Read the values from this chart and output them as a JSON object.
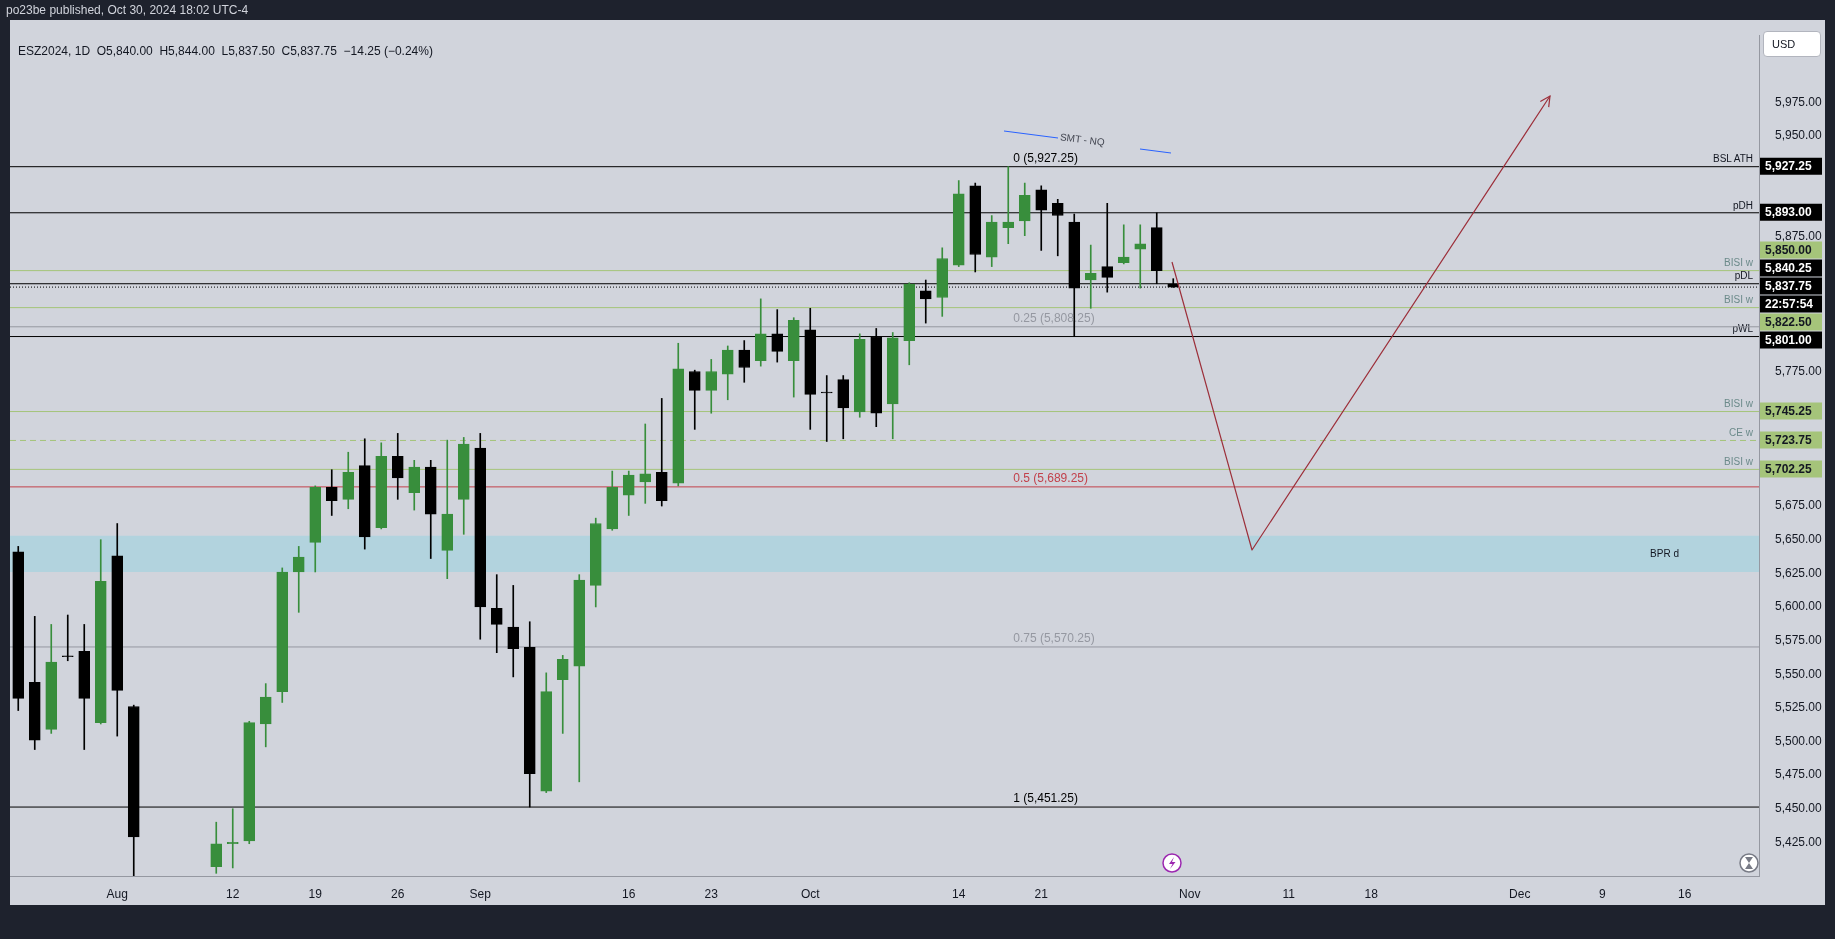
{
  "chart_data": {
    "type": "candlestick",
    "title": "ESZ2024, 1D  O5,840.00  H5,844.00  L5,837.50  C5,837.75  −14.25 (−0.24%)",
    "subtitle": "po23be published, Oct 30, 2024 18:02 UTC-4",
    "categories": [
      null,
      null,
      null,
      null,
      null,
      null,
      "Aug",
      null,
      null,
      null,
      null,
      null,
      null,
      "12",
      null,
      null,
      null,
      null,
      "19",
      null,
      null,
      null,
      null,
      "26",
      null,
      null,
      null,
      null,
      "Sep",
      null,
      null,
      null,
      null,
      null,
      null,
      null,
      null,
      "16",
      null,
      null,
      null,
      null,
      "23",
      null,
      null,
      null,
      null,
      null,
      "Oct",
      null,
      null,
      null,
      null,
      null,
      null,
      null,
      null,
      "14",
      null,
      null,
      null,
      null,
      "21",
      null,
      null,
      null,
      null,
      null,
      null,
      null,
      null,
      "Nov",
      null,
      null,
      null,
      null,
      null,
      "11",
      null,
      null,
      null,
      null,
      "18",
      null,
      null,
      null,
      null,
      null,
      null,
      null,
      null,
      "Dec",
      null,
      null,
      null,
      null,
      "9",
      null,
      null,
      null,
      null,
      "16",
      null,
      null,
      null,
      null
    ],
    "ohlc": [
      [
        5641,
        5645,
        5523,
        5532
      ],
      [
        5544,
        5593,
        5494,
        5501
      ],
      [
        5509,
        5587,
        5506,
        5559
      ],
      [
        5563,
        5594,
        5560,
        5563
      ],
      [
        5567,
        5587,
        5494,
        5532
      ],
      [
        5514,
        5650,
        5513,
        5619
      ],
      [
        5638,
        5662,
        5504,
        5538
      ],
      [
        5526,
        5527,
        5400,
        5429
      ],
      null,
      null,
      null,
      null,
      [
        5407,
        5440,
        5402,
        5424
      ],
      [
        5424,
        5450,
        5406,
        5425
      ],
      [
        5426,
        5515,
        5424,
        5514
      ],
      [
        5513,
        5543,
        5496,
        5533
      ],
      [
        5537,
        5629,
        5529,
        5626
      ],
      [
        5626,
        5645,
        5596,
        5637
      ],
      [
        5648,
        5690,
        5626,
        5689
      ],
      [
        5689,
        5702,
        5668,
        5679
      ],
      [
        5680,
        5715,
        5673,
        5700
      ],
      [
        5705,
        5725,
        5643,
        5652
      ],
      [
        5659,
        5722,
        5658,
        5712
      ],
      [
        5712,
        5729,
        5680,
        5696
      ],
      [
        5685,
        5709,
        5672,
        5704
      ],
      [
        5704,
        5709,
        5636,
        5669
      ],
      [
        5642,
        5724,
        5621,
        5669
      ],
      [
        5680,
        5726,
        5654,
        5721
      ],
      [
        5718,
        5729,
        5576,
        5600
      ],
      [
        5599,
        5624,
        5566,
        5587
      ],
      [
        5585,
        5616,
        5548,
        5569
      ],
      [
        5570,
        5589,
        5451.25,
        5476
      ],
      [
        5463,
        5551,
        5462,
        5537
      ],
      [
        5546,
        5564,
        5506,
        5561
      ],
      [
        5556,
        5624,
        5470,
        5620
      ],
      [
        5616,
        5666,
        5600,
        5662
      ],
      [
        5658,
        5701,
        5657,
        5689
      ],
      [
        5683,
        5701,
        5668,
        5698
      ],
      [
        5693,
        5736,
        5677,
        5699
      ],
      [
        5700,
        5755,
        5675,
        5679
      ],
      [
        5692,
        5796,
        5690,
        5777
      ],
      [
        5775,
        5776,
        5732,
        5761
      ],
      [
        5761,
        5784,
        5744,
        5775
      ],
      [
        5773,
        5794,
        5754,
        5791
      ],
      [
        5791,
        5798,
        5767,
        5778
      ],
      [
        5783,
        5829,
        5779,
        5803
      ],
      [
        5803,
        5821,
        5782,
        5790
      ],
      [
        5783,
        5815,
        5756,
        5813
      ],
      [
        5806,
        5822,
        5732,
        5758
      ],
      [
        5759,
        5772,
        5723,
        5759
      ],
      [
        5769,
        5772,
        5725,
        5748
      ],
      [
        5745,
        5803,
        5741,
        5799
      ],
      [
        5801,
        5807,
        5734,
        5744
      ],
      [
        5751,
        5804,
        5725,
        5800
      ],
      [
        5798,
        5841,
        5780,
        5840
      ],
      [
        5835,
        5843,
        5811,
        5829
      ],
      [
        5830,
        5867,
        5816,
        5859
      ],
      [
        5854,
        5917,
        5853,
        5907
      ],
      [
        5913,
        5915,
        5849,
        5862
      ],
      [
        5860,
        5891,
        5853,
        5886
      ],
      [
        5882,
        5927.25,
        5870,
        5886
      ],
      [
        5887,
        5915,
        5876,
        5906
      ],
      [
        5910,
        5913,
        5865,
        5895
      ],
      [
        5900,
        5903,
        5861,
        5891
      ],
      [
        5886,
        5892,
        5801,
        5837
      ],
      [
        5843,
        5869,
        5822,
        5848
      ],
      [
        5853,
        5900,
        5834,
        5845
      ],
      [
        5856,
        5884,
        5855,
        5860
      ],
      [
        5866,
        5884,
        5837,
        5870
      ],
      [
        5882,
        5893,
        5840.25,
        5850
      ],
      [
        5840,
        5844,
        5837.5,
        5837.75
      ],
      null,
      null,
      null,
      null,
      null,
      null,
      null,
      null,
      null,
      null,
      null,
      null,
      null,
      null,
      null,
      null,
      null,
      null,
      null,
      null,
      null,
      null,
      null,
      null,
      null,
      null,
      null,
      null,
      null,
      null,
      null,
      null,
      null,
      null,
      null
    ],
    "colors": [
      "#000000",
      "#000000",
      "#388e3c",
      "#000000",
      "#000000",
      "#388e3c",
      "#000000",
      "#000000",
      null,
      null,
      null,
      null,
      "#388e3c",
      "#388e3c",
      "#388e3c",
      "#388e3c",
      "#388e3c",
      "#388e3c",
      "#388e3c",
      "#000000",
      "#388e3c",
      "#000000",
      "#388e3c",
      "#000000",
      "#388e3c",
      "#000000",
      "#388e3c",
      "#388e3c",
      "#000000",
      "#000000",
      "#000000",
      "#000000",
      "#388e3c",
      "#388e3c",
      "#388e3c",
      "#388e3c",
      "#388e3c",
      "#388e3c",
      "#388e3c",
      "#000000",
      "#388e3c",
      "#000000",
      "#388e3c",
      "#388e3c",
      "#000000",
      "#388e3c",
      "#000000",
      "#388e3c",
      "#000000",
      "#000000",
      "#000000",
      "#388e3c",
      "#000000",
      "#388e3c",
      "#388e3c",
      "#000000",
      "#388e3c",
      "#388e3c",
      "#000000",
      "#388e3c",
      "#388e3c",
      "#388e3c",
      "#000000",
      "#000000",
      "#000000",
      "#388e3c",
      "#000000",
      "#388e3c",
      "#388e3c",
      "#000000",
      "#000000",
      null,
      null,
      null,
      null,
      null,
      null,
      null,
      null,
      null,
      null,
      null,
      null,
      null,
      null,
      null,
      null,
      null,
      null,
      null,
      null,
      null,
      null,
      null,
      null,
      null,
      null,
      null,
      null,
      null,
      null,
      null,
      null,
      null,
      null,
      null
    ],
    "ylim": [
      5400,
      6025
    ],
    "yticks": [
      {
        "value": 5425,
        "label": "5,425.00"
      },
      {
        "value": 5450,
        "label": "5,450.00"
      },
      {
        "value": 5475,
        "label": "5,475.00"
      },
      {
        "value": 5500,
        "label": "5,500.00"
      },
      {
        "value": 5525,
        "label": "5,525.00"
      },
      {
        "value": 5550,
        "label": "5,550.00"
      },
      {
        "value": 5575,
        "label": "5,575.00"
      },
      {
        "value": 5600,
        "label": "5,600.00"
      },
      {
        "value": 5625,
        "label": "5,625.00"
      },
      {
        "value": 5650,
        "label": "5,650.00"
      },
      {
        "value": 5675,
        "label": "5,675.00"
      },
      {
        "value": 5775,
        "label": "5,775.00"
      },
      {
        "value": 5875,
        "label": "5,875.00"
      },
      {
        "value": 5950,
        "label": "5,950.00"
      },
      {
        "value": 5975,
        "label": "5,975.00"
      }
    ],
    "ref_lines": [
      {
        "axis": "y",
        "value": 5927.25,
        "label": "BSL ATH",
        "color": "#000000"
      },
      {
        "axis": "y",
        "value": 5893,
        "label": "pDH",
        "color": "#000000"
      },
      {
        "axis": "y",
        "value": 5850,
        "label": "BISI w",
        "color": "#a5c47a"
      },
      {
        "axis": "y",
        "value": 5840.25,
        "label": "pDL",
        "color": "#000000"
      },
      {
        "axis": "y",
        "value": 5837.75,
        "label": null,
        "color": "#000000",
        "line_style": "dotted"
      },
      {
        "axis": "y",
        "value": 5822.5,
        "label": "BISI w",
        "color": "#a5c47a"
      },
      {
        "axis": "y",
        "value": 5801,
        "label": "pWL",
        "color": "#000000"
      },
      {
        "axis": "y",
        "value": 5745.25,
        "label": "BISI w",
        "color": "#a5c47a"
      },
      {
        "axis": "y",
        "value": 5723.75,
        "label": "CE w",
        "color": "#a5c47a",
        "line_style": "dashed"
      },
      {
        "axis": "y",
        "value": 5702.25,
        "label": "BISI w",
        "color": "#a5c47a"
      },
      {
        "axis": "y",
        "value": 5808.25,
        "label": null,
        "color": "#9598a1"
      },
      {
        "axis": "y",
        "value": 5689.25,
        "label": null,
        "color": "#c2414b"
      },
      {
        "axis": "y",
        "value": 5570.25,
        "label": null,
        "color": "#9598a1"
      },
      {
        "axis": "y",
        "value": 5451.25,
        "label": null,
        "color": "#000000"
      }
    ],
    "bands": [
      {
        "axis": "y",
        "from": 5626,
        "to": 5653,
        "label": "BPR d",
        "color": "#b2d3de"
      }
    ],
    "annotations": [
      "USD",
      "SMT - NQ",
      "22:57:54",
      "5,927.25",
      "5,893.00",
      "5,850.00",
      "5,840.25",
      "5,837.75",
      "5,822.50",
      "5,801.00",
      "5,745.25",
      "5,723.75",
      "5,702.25",
      {
        "text": "0 (5,927.25)",
        "x": "21",
        "y": 5927.25
      },
      {
        "text": "0.25 (5,808.25)",
        "x": "21",
        "y": 5808.25
      },
      {
        "text": "0.5 (5,689.25)",
        "x": "21",
        "y": 5689.25
      },
      {
        "text": "0.75 (5,570.25)",
        "x": "21",
        "y": 5570.25
      },
      {
        "text": "1 (5,451.25)",
        "x": "21",
        "y": 5451.25
      }
    ]
  }
}
